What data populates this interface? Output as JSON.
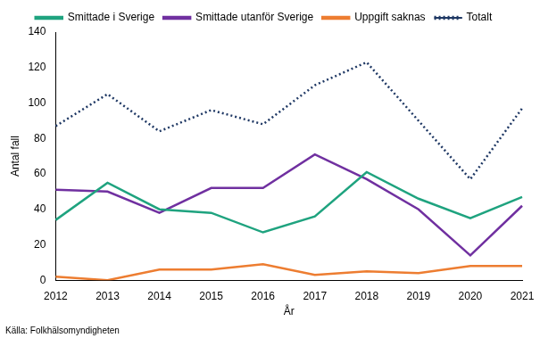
{
  "chart_data": {
    "type": "line",
    "x_label": "År",
    "y_label": "Antal fall",
    "source": "Källa: Folkhälsomyndigheten",
    "categories": [
      "2012",
      "2013",
      "2014",
      "2015",
      "2016",
      "2017",
      "2018",
      "2019",
      "2020",
      "2021"
    ],
    "series": [
      {
        "name": "Smittade i Sverige",
        "color": "#1fa37f",
        "line_style": "solid",
        "values": [
          34,
          55,
          40,
          38,
          27,
          36,
          61,
          46,
          35,
          47
        ]
      },
      {
        "name": "Smittade utanför Sverige",
        "color": "#7030a0",
        "line_style": "solid",
        "values": [
          51,
          50,
          38,
          52,
          52,
          71,
          57,
          40,
          14,
          42
        ]
      },
      {
        "name": "Uppgift saknas",
        "color": "#ed7d31",
        "line_style": "solid",
        "values": [
          2,
          0,
          6,
          6,
          9,
          3,
          5,
          4,
          8,
          8
        ]
      },
      {
        "name": "Totalt",
        "color": "#1f3864",
        "line_style": "dotted",
        "values": [
          87,
          105,
          84,
          96,
          88,
          110,
          123,
          90,
          57,
          97
        ]
      }
    ],
    "ylim": [
      0,
      140
    ],
    "yticks": [
      0,
      20,
      40,
      60,
      80,
      100,
      120,
      140
    ],
    "grid": false,
    "legend": "top"
  }
}
